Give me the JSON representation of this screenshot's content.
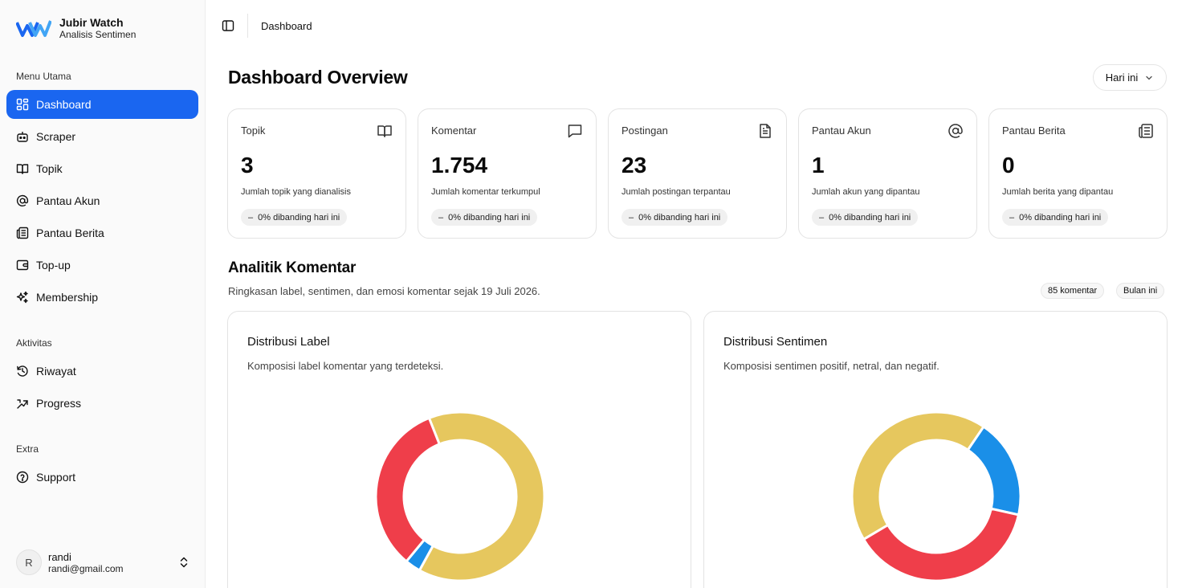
{
  "brand": {
    "name": "Jubir Watch",
    "subtitle": "Analisis Sentimen"
  },
  "sidebar": {
    "section_main": "Menu Utama",
    "section_activity": "Aktivitas",
    "section_extra": "Extra",
    "items": [
      {
        "label": "Dashboard",
        "icon": "dashboard-icon",
        "active": true
      },
      {
        "label": "Scraper",
        "icon": "robot-icon"
      },
      {
        "label": "Topik",
        "icon": "book-icon"
      },
      {
        "label": "Pantau Akun",
        "icon": "at-sign-icon"
      },
      {
        "label": "Pantau Berita",
        "icon": "newspaper-icon"
      },
      {
        "label": "Top-up",
        "icon": "wallet-icon"
      },
      {
        "label": "Membership",
        "icon": "sparkles-icon"
      },
      {
        "label": "Riwayat",
        "icon": "history-icon"
      },
      {
        "label": "Progress",
        "icon": "progress-icon"
      },
      {
        "label": "Support",
        "icon": "help-circle-icon"
      }
    ]
  },
  "user": {
    "initial": "R",
    "name": "randi",
    "email": "randi@gmail.com"
  },
  "topbar": {
    "breadcrumb": "Dashboard"
  },
  "header": {
    "title": "Dashboard Overview",
    "range": "Hari ini"
  },
  "stats": [
    {
      "label": "Topik",
      "value": "3",
      "desc": "Jumlah topik yang dianalisis",
      "badge": "0% dibanding hari ini",
      "icon": "book-icon"
    },
    {
      "label": "Komentar",
      "value": "1.754",
      "desc": "Jumlah komentar terkumpul",
      "badge": "0% dibanding hari ini",
      "icon": "message-icon"
    },
    {
      "label": "Postingan",
      "value": "23",
      "desc": "Jumlah postingan terpantau",
      "badge": "0% dibanding hari ini",
      "icon": "file-text-icon"
    },
    {
      "label": "Pantau Akun",
      "value": "1",
      "desc": "Jumlah akun yang dipantau",
      "badge": "0% dibanding hari ini",
      "icon": "at-sign-icon"
    },
    {
      "label": "Pantau Berita",
      "value": "0",
      "desc": "Jumlah berita yang dipantau",
      "badge": "0% dibanding hari ini",
      "icon": "newspaper-icon"
    }
  ],
  "analytics": {
    "title": "Analitik Komentar",
    "subtitle": "Ringkasan label, sentimen, dan emosi komentar sejak 19 Juli 2026.",
    "count_pill": "85 komentar",
    "period_pill": "Bulan ini"
  },
  "charts": [
    {
      "title": "Distribusi Label",
      "subtitle": "Komposisi label komentar yang terdeteksi."
    },
    {
      "title": "Distribusi Sentimen",
      "subtitle": "Komposisi sentimen positif, netral, dan negatif."
    }
  ],
  "chart_data": [
    {
      "type": "pie",
      "title": "Distribusi Label",
      "colors": [
        "#e6c75e",
        "#1a8fe8",
        "#ef3e4a"
      ],
      "values": [
        0.64,
        0.03,
        0.33
      ]
    },
    {
      "type": "pie",
      "title": "Distribusi Sentimen",
      "colors": [
        "#e6c75e",
        "#1a8fe8",
        "#ef3e4a"
      ],
      "values": [
        0.43,
        0.19,
        0.38
      ]
    }
  ],
  "colors": {
    "accent": "#1a66f0",
    "yellow": "#e6c75e",
    "blue": "#1a8fe8",
    "red": "#ef3e4a"
  }
}
